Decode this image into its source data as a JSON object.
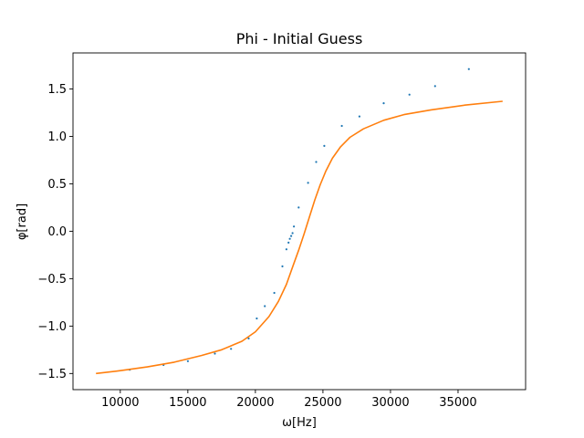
{
  "chart_data": {
    "type": "scatter",
    "title": "Phi - Initial Guess",
    "xlabel": "ω[Hz]",
    "ylabel": "φ[rad]",
    "xlim": [
      6500,
      40000
    ],
    "ylim": [
      -1.67,
      1.88
    ],
    "xticks": [
      10000,
      15000,
      20000,
      25000,
      30000,
      35000
    ],
    "xtick_labels": [
      "10000",
      "15000",
      "20000",
      "25000",
      "30000",
      "35000"
    ],
    "yticks": [
      -1.5,
      -1.0,
      -0.5,
      0.0,
      0.5,
      1.0,
      1.5
    ],
    "ytick_labels": [
      "−1.5",
      "−1.0",
      "−0.5",
      "0.0",
      "0.5",
      "1.0",
      "1.5"
    ],
    "grid": false,
    "series": [
      {
        "kind": "scatter",
        "color": "#1f77b4",
        "x": [
          10700,
          13200,
          15000,
          17000,
          18200,
          19500,
          20100,
          20700,
          21400,
          22000,
          22300,
          22450,
          22550,
          22650,
          22750,
          22850,
          23200,
          23900,
          24500,
          25100,
          26400,
          27700,
          29500,
          31400,
          33300,
          35800
        ],
        "y": [
          -1.46,
          -1.41,
          -1.37,
          -1.29,
          -1.24,
          -1.13,
          -0.92,
          -0.79,
          -0.65,
          -0.37,
          -0.19,
          -0.12,
          -0.08,
          -0.05,
          -0.02,
          0.05,
          0.25,
          0.51,
          0.73,
          0.9,
          1.11,
          1.21,
          1.35,
          1.44,
          1.53,
          1.71
        ]
      },
      {
        "kind": "line",
        "color": "#ff7f0e",
        "x": [
          8200,
          10000,
          12000,
          14000,
          16000,
          17500,
          19000,
          20000,
          21000,
          21700,
          22300,
          22800,
          23200,
          23600,
          24000,
          24400,
          24800,
          25200,
          25700,
          26300,
          27000,
          28000,
          29500,
          31000,
          33000,
          35500,
          38300
        ],
        "y": [
          -1.5,
          -1.47,
          -1.43,
          -1.38,
          -1.31,
          -1.25,
          -1.16,
          -1.06,
          -0.9,
          -0.74,
          -0.56,
          -0.36,
          -0.2,
          -0.03,
          0.15,
          0.33,
          0.49,
          0.63,
          0.77,
          0.89,
          0.99,
          1.08,
          1.17,
          1.23,
          1.28,
          1.33,
          1.37
        ]
      }
    ]
  }
}
